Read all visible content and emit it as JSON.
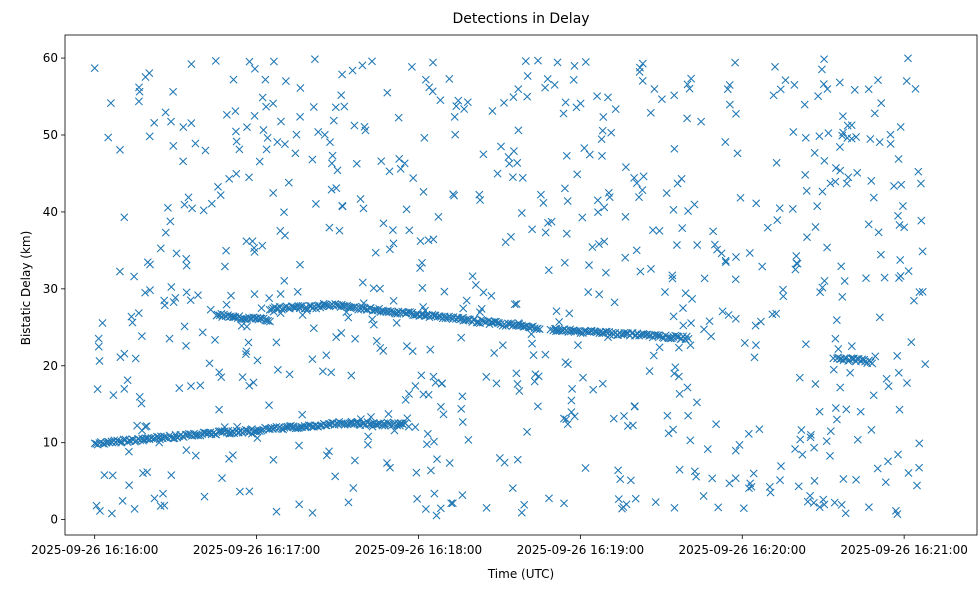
{
  "chart_data": {
    "type": "scatter",
    "title": "Detections in Delay",
    "xlabel": "Time (UTC)",
    "ylabel": "Bistatic Delay (km)",
    "marker": "x",
    "color": "#1f77b4",
    "x_format": "YYYY-MM-DD HH:MM:SS",
    "xlim": [
      "2025-09-26 16:15:49",
      "2025-09-26 16:21:27"
    ],
    "ylim": [
      -2,
      63
    ],
    "x_ticks": [
      "2025-09-26 16:16:00",
      "2025-09-26 16:17:00",
      "2025-09-26 16:18:00",
      "2025-09-26 16:19:00",
      "2025-09-26 16:20:00",
      "2025-09-26 16:21:00"
    ],
    "y_ticks": [
      0,
      10,
      20,
      30,
      40,
      50,
      60
    ],
    "grid": false,
    "tracks": [
      {
        "start": "2025-09-26 16:16:00",
        "end": "2025-09-26 16:16:50",
        "y_start": 9.9,
        "y_end": 11.4
      },
      {
        "start": "2025-09-26 16:16:50",
        "end": "2025-09-26 16:17:35",
        "y_start": 11.4,
        "y_end": 12.6
      },
      {
        "start": "2025-09-26 16:17:35",
        "end": "2025-09-26 16:17:55",
        "y_start": 12.5,
        "y_end": 12.4
      },
      {
        "start": "2025-09-26 16:16:45",
        "end": "2025-09-26 16:17:05",
        "y_start": 26.6,
        "y_end": 25.9
      },
      {
        "start": "2025-09-26 16:17:05",
        "end": "2025-09-26 16:17:25",
        "y_start": 27.4,
        "y_end": 27.7
      },
      {
        "start": "2025-09-26 16:17:25",
        "end": "2025-09-26 16:18:45",
        "y_start": 28.0,
        "y_end": 24.9
      },
      {
        "start": "2025-09-26 16:18:50",
        "end": "2025-09-26 16:19:40",
        "y_start": 24.7,
        "y_end": 23.6
      },
      {
        "start": "2025-09-26 16:20:35",
        "end": "2025-09-26 16:20:48",
        "y_start": 21.0,
        "y_end": 20.5
      }
    ],
    "clutter": {
      "count": 760,
      "x_range": [
        "2025-09-26 16:16:00",
        "2025-09-26 16:21:08"
      ],
      "y_range": [
        0.5,
        60
      ]
    }
  }
}
